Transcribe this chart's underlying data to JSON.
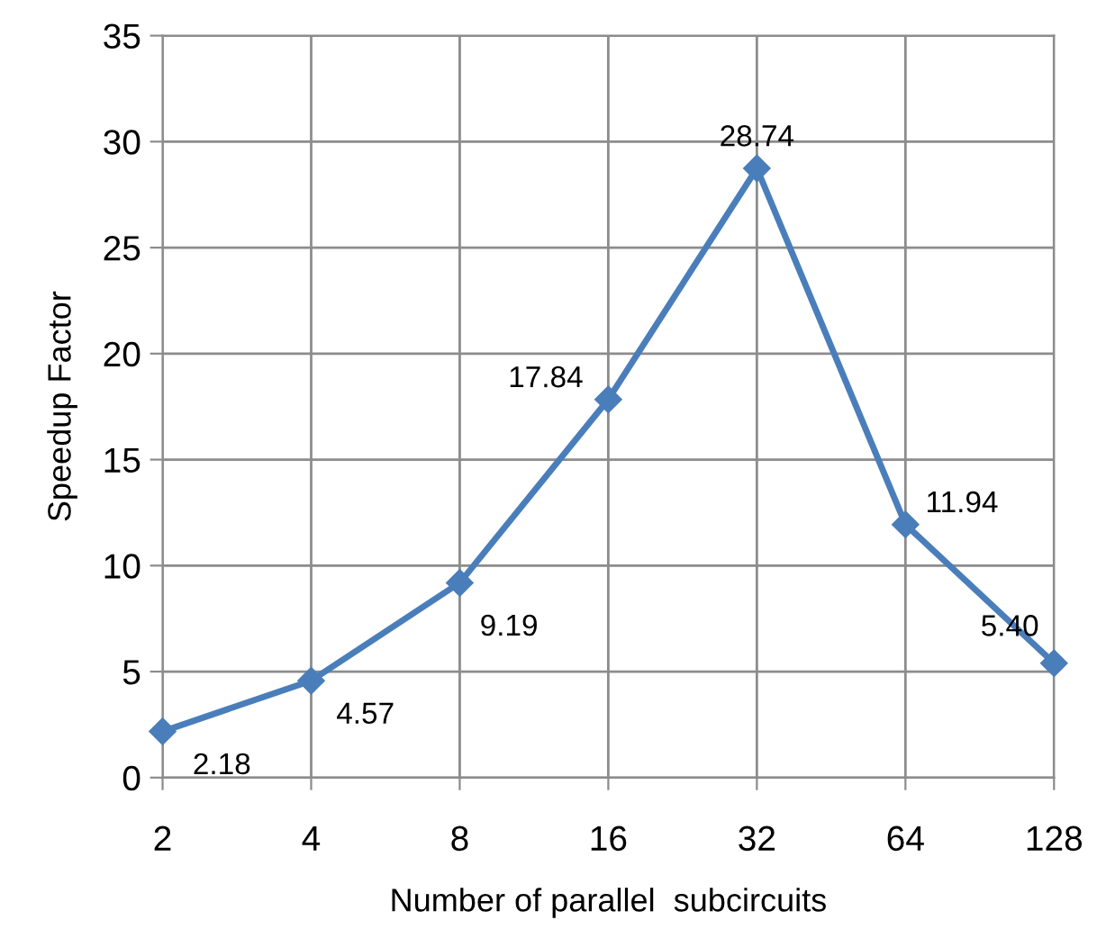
{
  "chart_data": {
    "type": "line",
    "xlabel": "Number of parallel  subcircuits",
    "ylabel": "Speedup Factor",
    "categories": [
      "2",
      "4",
      "8",
      "16",
      "32",
      "64",
      "128"
    ],
    "series": [
      {
        "color": "#4a7ebb",
        "values": [
          2.18,
          4.57,
          9.19,
          17.84,
          28.74,
          11.94,
          5.4
        ],
        "value_labels": [
          "2.18",
          "4.57",
          "9.19",
          "17.84",
          "28.74",
          "11.94",
          "5.40"
        ]
      }
    ],
    "ylim": [
      0,
      35
    ],
    "yticks": [
      0,
      5,
      10,
      15,
      20,
      25,
      30,
      35
    ],
    "grid": true,
    "marker": "diamond",
    "line_style": "solid"
  }
}
